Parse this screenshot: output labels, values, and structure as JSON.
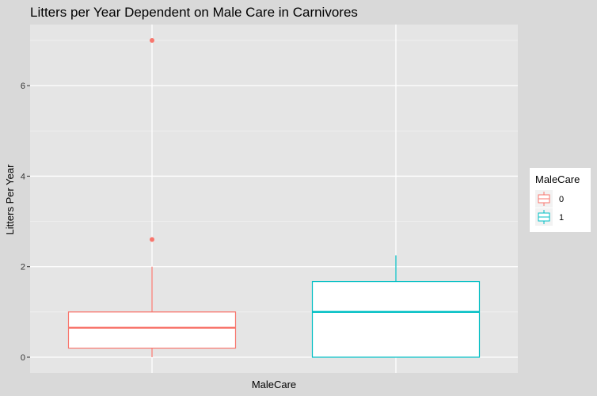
{
  "chart_data": {
    "type": "box",
    "title": "Litters per Year Dependent on Male Care in Carnivores",
    "xlabel": "MaleCare",
    "ylabel": "Litters Per Year",
    "ylim": [
      -0.35,
      7.35
    ],
    "yticks": [
      0,
      2,
      4,
      6
    ],
    "grid": true,
    "legend": {
      "title": "MaleCare",
      "position": "right",
      "entries": [
        "0",
        "1"
      ]
    },
    "series": [
      {
        "name": "0",
        "color": "#f8766d",
        "min": 0,
        "q1": 0.2,
        "median": 0.65,
        "q3": 1.0,
        "max": 2.0,
        "outliers": [
          2.6,
          7.0
        ]
      },
      {
        "name": "1",
        "color": "#00bfc4",
        "min": 0,
        "q1": 0,
        "median": 1.0,
        "q3": 1.67,
        "max": 2.25,
        "outliers": []
      }
    ]
  }
}
